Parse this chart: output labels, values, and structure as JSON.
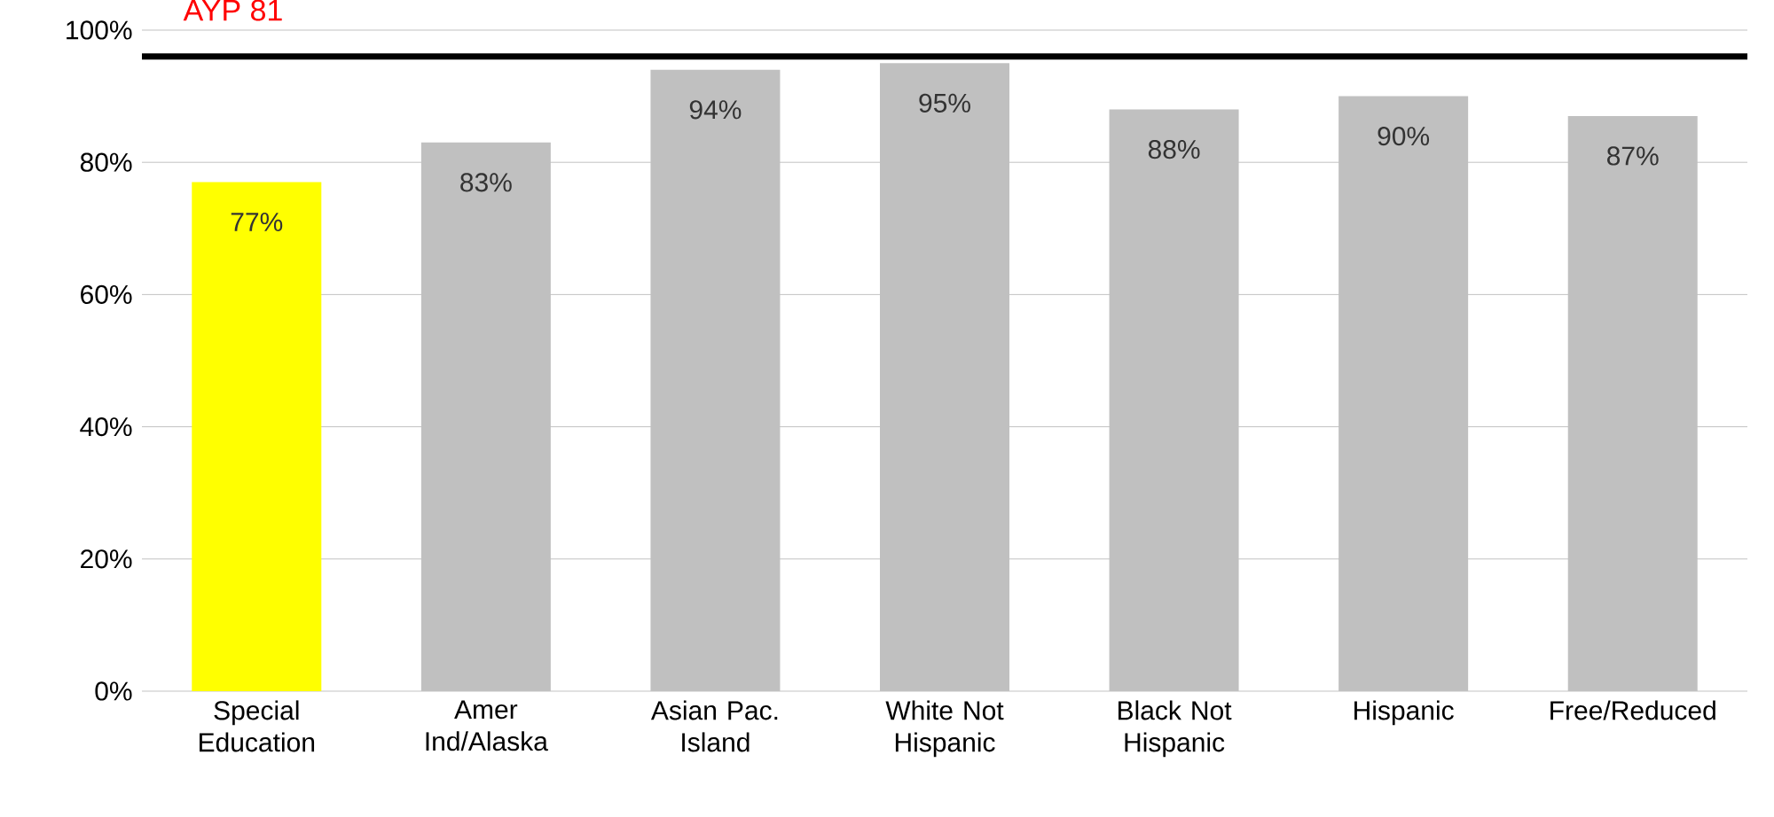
{
  "chart_data": {
    "type": "bar",
    "categories": [
      "Special Education",
      "Amer Ind/Alaska",
      "Asian Pac. Island",
      "White Not Hispanic",
      "Black Not Hispanic",
      "Hispanic",
      "Free/Reduced"
    ],
    "values": [
      77,
      83,
      94,
      95,
      88,
      90,
      87
    ],
    "colors": [
      "#ffff00",
      "#c0c0c0",
      "#c0c0c0",
      "#c0c0c0",
      "#c0c0c0",
      "#c0c0c0",
      "#c0c0c0"
    ],
    "value_labels": [
      "77%",
      "83%",
      "94%",
      "95%",
      "88%",
      "90%",
      "87%"
    ],
    "ylim": [
      0,
      100
    ],
    "yticks": [
      {
        "value": 0,
        "label": "0%"
      },
      {
        "value": 20,
        "label": "20%"
      },
      {
        "value": 40,
        "label": "40%"
      },
      {
        "value": 60,
        "label": "60%"
      },
      {
        "value": 80,
        "label": "80%"
      },
      {
        "value": 100,
        "label": "100%"
      }
    ],
    "grid": "y",
    "ref_lines": [
      {
        "axis": "y",
        "value": 96,
        "label": "AYP 81",
        "color": "#000000"
      }
    ]
  }
}
